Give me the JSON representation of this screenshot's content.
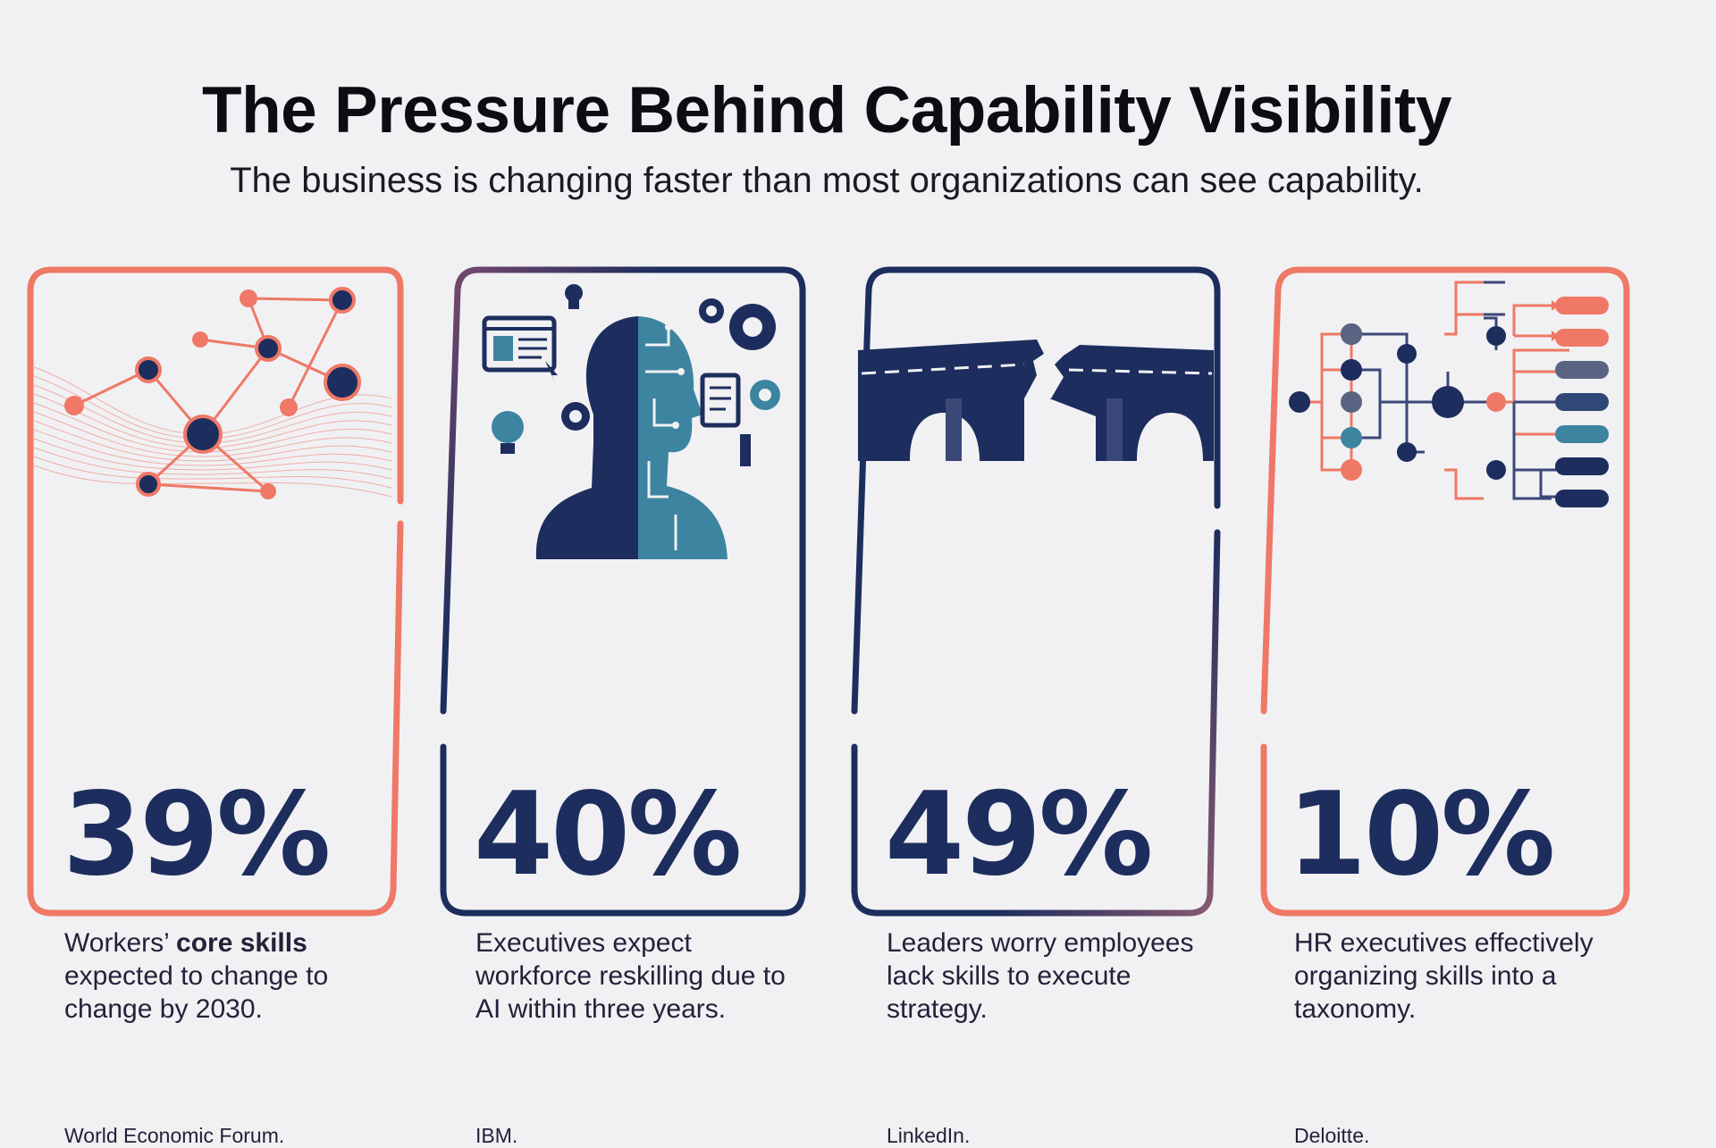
{
  "title": "The Pressure Behind Capability Visibility",
  "subtitle": "The business is changing faster than most organizations can see capability.",
  "colors": {
    "navy": "#1d2d5e",
    "coral": "#ef7866",
    "teal": "#3d84a0",
    "slate": "#5a6382"
  },
  "cards": [
    {
      "icon": "network-nodes-icon",
      "value": "39%",
      "desc_before": "Workers’ ",
      "desc_bold": "core skills",
      "desc_after": " expected to change to change by 2030.",
      "source": "World Economic Forum."
    },
    {
      "icon": "ai-human-head-icon",
      "value": "40%",
      "desc": "Executives expect workforce reskilling due to AI within three years.",
      "source": "IBM."
    },
    {
      "icon": "broken-bridge-icon",
      "value": "49%",
      "desc": "Leaders worry employees lack skills to execute strategy.",
      "source": "LinkedIn."
    },
    {
      "icon": "skills-taxonomy-tree-icon",
      "value": "10%",
      "desc": "HR executives effectively organizing skills into a taxonomy.",
      "source": "Deloitte."
    }
  ]
}
